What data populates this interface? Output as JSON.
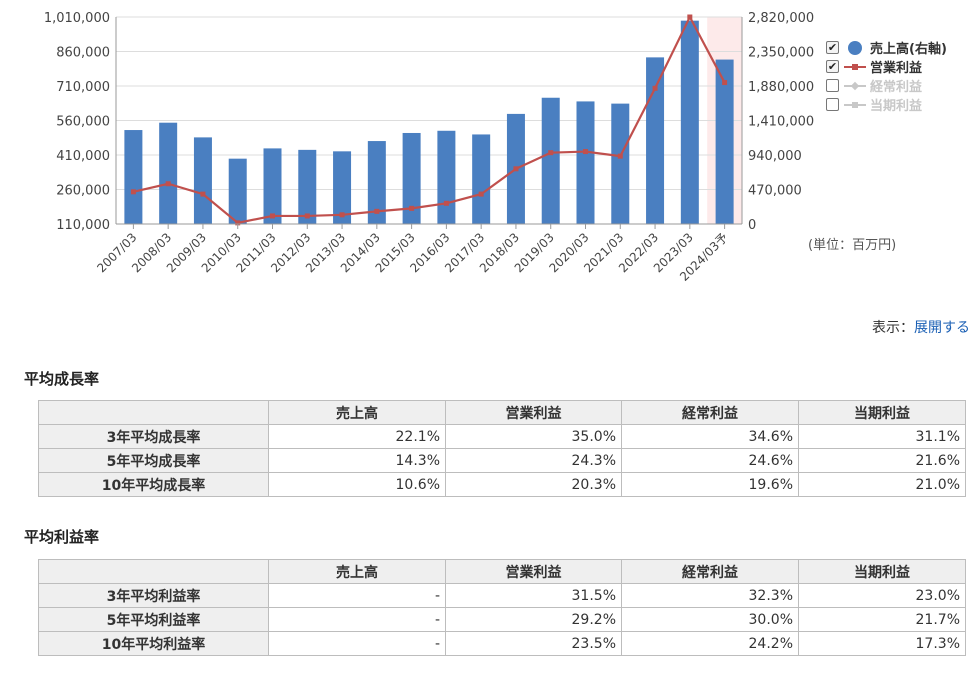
{
  "chart_data": {
    "type": "bar+line",
    "categories": [
      "2007/03",
      "2008/03",
      "2009/03",
      "2010/03",
      "2011/03",
      "2012/03",
      "2013/03",
      "2014/03",
      "2015/03",
      "2016/03",
      "2017/03",
      "2018/03",
      "2019/03",
      "2020/03",
      "2021/03",
      "2022/03",
      "2023/03",
      "2024/03予"
    ],
    "series": [
      {
        "name": "売上高(右軸)",
        "type": "bar",
        "axis": "right",
        "color": "#4a7fc1",
        "values": [
          1280000,
          1380000,
          1180000,
          890000,
          1030000,
          1010000,
          990000,
          1130000,
          1240000,
          1270000,
          1220000,
          1500000,
          1720000,
          1670000,
          1640000,
          2270000,
          2770000,
          2240000
        ]
      },
      {
        "name": "営業利益",
        "type": "line",
        "axis": "left",
        "color": "#c0504d",
        "values": [
          250000,
          285000,
          240000,
          115000,
          145000,
          145000,
          150000,
          165000,
          178000,
          200000,
          240000,
          350000,
          420000,
          425000,
          405000,
          700000,
          1010000,
          725000
        ]
      }
    ],
    "legend": [
      {
        "label": "売上高(右軸)",
        "checked": true,
        "color": "#4a7fc1",
        "marker": "circle"
      },
      {
        "label": "営業利益",
        "checked": true,
        "color": "#c0504d",
        "marker": "line-square"
      },
      {
        "label": "経常利益",
        "checked": false,
        "color": "#c8c8c8",
        "marker": "line-diamond"
      },
      {
        "label": "当期利益",
        "checked": false,
        "color": "#c8c8c8",
        "marker": "line-triangle"
      }
    ],
    "left_axis": {
      "ylim": [
        110000,
        1010000
      ],
      "ticks": [
        "1,010,000",
        "860,000",
        "710,000",
        "560,000",
        "410,000",
        "260,000",
        "110,000"
      ]
    },
    "right_axis": {
      "ylim": [
        0,
        2820000
      ],
      "ticks": [
        "2,820,000",
        "2,350,000",
        "1,880,000",
        "1,410,000",
        "940,000",
        "470,000",
        "0"
      ]
    },
    "forecast_highlight": "2024/03予",
    "grid": true,
    "legend_position": "right"
  },
  "unit_note": "(単位：百万円)",
  "display": {
    "label": "表示：",
    "link": "展開する"
  },
  "growth": {
    "title": "平均成長率",
    "headers": [
      "",
      "売上高",
      "営業利益",
      "経常利益",
      "当期利益"
    ],
    "rows": [
      {
        "label": "3年平均成長率",
        "cells": [
          "22.1%",
          "35.0%",
          "34.6%",
          "31.1%"
        ]
      },
      {
        "label": "5年平均成長率",
        "cells": [
          "14.3%",
          "24.3%",
          "24.6%",
          "21.6%"
        ]
      },
      {
        "label": "10年平均成長率",
        "cells": [
          "10.6%",
          "20.3%",
          "19.6%",
          "21.0%"
        ]
      }
    ]
  },
  "margin": {
    "title": "平均利益率",
    "headers": [
      "",
      "売上高",
      "営業利益",
      "経常利益",
      "当期利益"
    ],
    "rows": [
      {
        "label": "3年平均利益率",
        "cells": [
          "-",
          "31.5%",
          "32.3%",
          "23.0%"
        ]
      },
      {
        "label": "5年平均利益率",
        "cells": [
          "-",
          "29.2%",
          "30.0%",
          "21.7%"
        ]
      },
      {
        "label": "10年平均利益率",
        "cells": [
          "-",
          "23.5%",
          "24.2%",
          "17.3%"
        ]
      }
    ]
  }
}
